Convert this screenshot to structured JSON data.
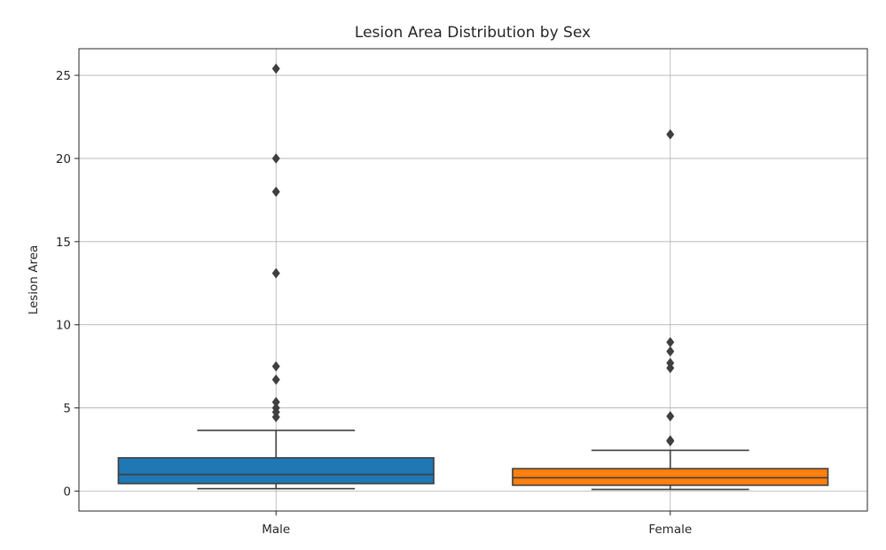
{
  "chart_data": {
    "type": "box",
    "title": "Lesion Area Distribution by Sex",
    "xlabel": "",
    "ylabel": "Lesion Area",
    "ylim": [
      -1.2,
      26.6
    ],
    "yticks": [
      0,
      5,
      10,
      15,
      20,
      25
    ],
    "grid": true,
    "categories": [
      "Male",
      "Female"
    ],
    "boxes": [
      {
        "category": "Male",
        "color": "#1f77b4",
        "whisker_low": 0.15,
        "q1": 0.45,
        "median": 1.0,
        "q3": 2.0,
        "whisker_high": 3.65,
        "outliers": [
          4.45,
          4.75,
          5.0,
          5.35,
          6.7,
          7.5,
          13.1,
          18.0,
          20.0,
          25.4
        ]
      },
      {
        "category": "Female",
        "color": "#ff7f0e",
        "whisker_low": 0.1,
        "q1": 0.35,
        "median": 0.8,
        "q3": 1.35,
        "whisker_high": 2.45,
        "outliers": [
          3.0,
          3.05,
          4.5,
          7.4,
          7.7,
          8.4,
          8.95,
          21.45
        ]
      }
    ]
  }
}
